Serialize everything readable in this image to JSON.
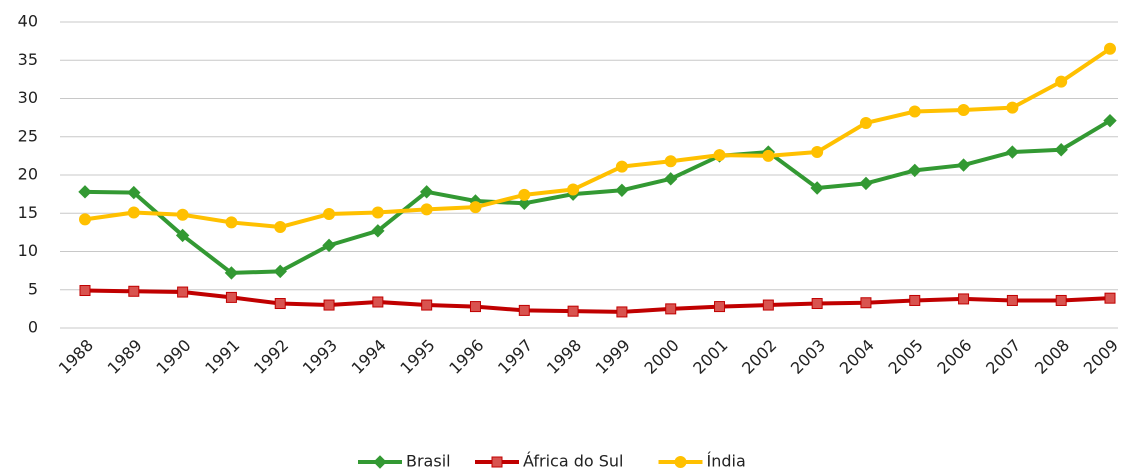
{
  "chart_data": {
    "type": "line",
    "categories": [
      "1988",
      "1989",
      "1990",
      "1991",
      "1992",
      "1993",
      "1994",
      "1995",
      "1996",
      "1997",
      "1998",
      "1999",
      "2000",
      "2001",
      "2002",
      "2003",
      "2004",
      "2005",
      "2006",
      "2007",
      "2008",
      "2009"
    ],
    "series": [
      {
        "name": "Brasil",
        "color": "#339933",
        "marker": "diamond",
        "values": [
          17.8,
          17.7,
          12.1,
          7.2,
          7.4,
          10.8,
          12.7,
          17.8,
          16.6,
          16.3,
          17.5,
          18.0,
          19.5,
          22.5,
          23.0,
          18.3,
          18.9,
          20.6,
          21.3,
          23.0,
          23.3,
          27.1
        ]
      },
      {
        "name": "África do Sul",
        "color": "#c00000",
        "marker": "square",
        "values": [
          4.9,
          4.8,
          4.7,
          4.0,
          3.2,
          3.0,
          3.4,
          3.0,
          2.8,
          2.3,
          2.2,
          2.1,
          2.5,
          2.8,
          3.0,
          3.2,
          3.3,
          3.6,
          3.8,
          3.6,
          3.6,
          3.9
        ]
      },
      {
        "name": "Índia",
        "color": "#ffc000",
        "marker": "circle",
        "values": [
          14.2,
          15.1,
          14.8,
          13.8,
          13.2,
          14.9,
          15.1,
          15.5,
          15.8,
          17.4,
          18.1,
          21.1,
          21.8,
          22.6,
          22.5,
          23.0,
          26.8,
          28.3,
          28.5,
          28.8,
          32.2,
          36.5
        ]
      }
    ],
    "ylim": [
      0,
      40
    ],
    "yticks": [
      0,
      5,
      10,
      15,
      20,
      25,
      30,
      35,
      40
    ],
    "grid": true,
    "legend": "bottom"
  }
}
